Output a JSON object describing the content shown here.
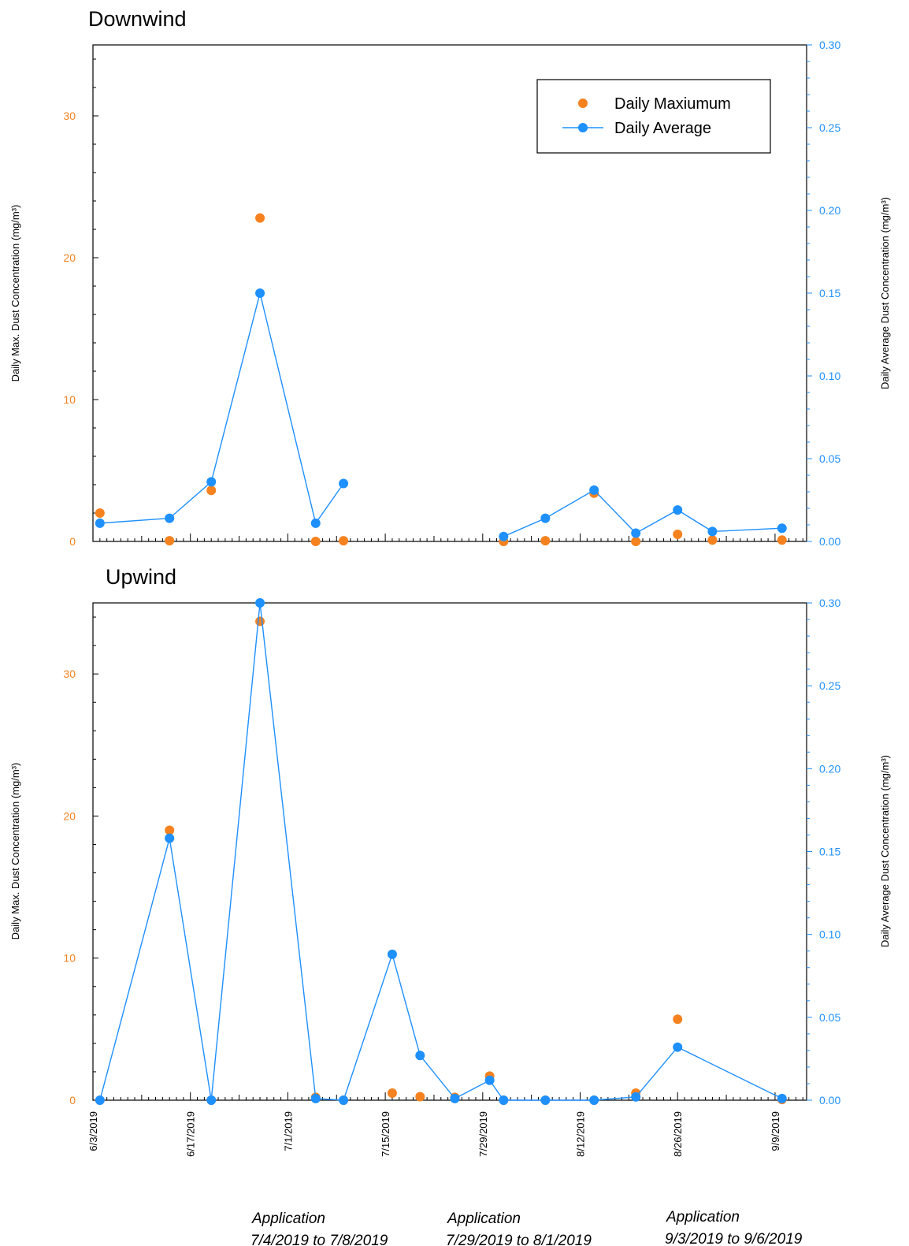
{
  "chart_data": [
    {
      "type": "scatter+line",
      "title": "Downwind",
      "ylabel_left": "Daily Max. Dust Concentration (mg/m³)",
      "ylabel_right": "Daily Average Dust Concentration (mg/m³)",
      "ylim_left": [
        0,
        35
      ],
      "ylim_right": [
        0,
        0.3
      ],
      "yticks_left": [
        0,
        10,
        20,
        30
      ],
      "yticks_right": [
        "0.00",
        "0.05",
        "0.10",
        "0.15",
        "0.20",
        "0.25",
        "0.30"
      ],
      "legend": {
        "position": "top-right",
        "entries": [
          "Daily Maxiumum",
          "Daily Average"
        ]
      },
      "series": [
        {
          "name": "Daily Maxiumum",
          "axis": "left",
          "style": "markers",
          "color": "#f5821f",
          "x": [
            "2019-06-04",
            "2019-06-14",
            "2019-06-20",
            "2019-06-27",
            "2019-07-05",
            "2019-07-09",
            "2019-08-01",
            "2019-08-07",
            "2019-08-14",
            "2019-08-20",
            "2019-08-26",
            "2019-08-31",
            "2019-09-10"
          ],
          "values": [
            2.0,
            0.05,
            3.6,
            22.8,
            0.0,
            0.05,
            0.0,
            0.05,
            3.4,
            0.0,
            0.5,
            0.1,
            0.1
          ]
        },
        {
          "name": "Daily Average",
          "axis": "right",
          "style": "line+markers",
          "color": "#1e90ff",
          "segments": [
            {
              "x": [
                "2019-06-04",
                "2019-06-14",
                "2019-06-20",
                "2019-06-27",
                "2019-07-05",
                "2019-07-09"
              ],
              "values": [
                0.011,
                0.014,
                0.036,
                0.15,
                0.011,
                0.035
              ]
            },
            {
              "x": [
                "2019-08-01",
                "2019-08-07",
                "2019-08-14",
                "2019-08-20",
                "2019-08-26",
                "2019-08-31",
                "2019-09-10"
              ],
              "values": [
                0.003,
                0.014,
                0.031,
                0.005,
                0.019,
                0.006,
                0.008
              ]
            }
          ]
        }
      ]
    },
    {
      "type": "scatter+line",
      "title": "Upwind",
      "ylabel_left": "Daily Max. Dust Concentration (mg/m³)",
      "ylabel_right": "Daily Average Dust Concentration (mg/m³)",
      "ylim_left": [
        0,
        35
      ],
      "ylim_right": [
        0,
        0.3
      ],
      "yticks_left": [
        0,
        10,
        20,
        30
      ],
      "yticks_right": [
        "0.00",
        "0.05",
        "0.10",
        "0.15",
        "0.20",
        "0.25",
        "0.30"
      ],
      "x_tick_labels": [
        "6/3/2019",
        "6/17/2019",
        "7/1/2019",
        "7/15/2019",
        "7/29/2019",
        "8/12/2019",
        "8/26/2019",
        "9/9/2019"
      ],
      "series": [
        {
          "name": "Daily Maxiumum",
          "axis": "left",
          "style": "markers",
          "color": "#f5821f",
          "x": [
            "2019-06-04",
            "2019-06-14",
            "2019-06-20",
            "2019-06-27",
            "2019-07-05",
            "2019-07-09",
            "2019-07-16",
            "2019-07-20",
            "2019-07-25",
            "2019-07-30",
            "2019-08-01",
            "2019-08-07",
            "2019-08-14",
            "2019-08-20",
            "2019-08-26",
            "2019-09-10"
          ],
          "values": [
            0.0,
            19.0,
            0.0,
            33.7,
            0.2,
            0.0,
            0.5,
            0.25,
            0.2,
            1.7,
            0.0,
            0.0,
            0.0,
            0.5,
            5.7,
            0.05
          ]
        },
        {
          "name": "Daily Average",
          "axis": "right",
          "style": "line+markers",
          "color": "#1e90ff",
          "segments": [
            {
              "x": [
                "2019-06-04",
                "2019-06-14",
                "2019-06-20",
                "2019-06-27",
                "2019-07-05",
                "2019-07-09",
                "2019-07-16",
                "2019-07-20",
                "2019-07-25",
                "2019-07-30",
                "2019-08-01",
                "2019-08-07",
                "2019-08-14",
                "2019-08-20",
                "2019-08-26",
                "2019-09-10"
              ],
              "values": [
                0.0,
                0.158,
                0.0,
                0.3,
                0.001,
                0.0,
                0.088,
                0.027,
                0.001,
                0.012,
                0.0,
                0.0,
                0.0,
                0.002,
                0.032,
                0.001
              ]
            }
          ]
        }
      ]
    }
  ],
  "annotations": [
    {
      "line1": "Application",
      "line2": "7/4/2019 to 7/8/2019"
    },
    {
      "line1": "Application",
      "line2": "7/29/2019 to 8/1/2019"
    },
    {
      "line1": "Application",
      "line2": "9/3/2019 to 9/6/2019"
    }
  ],
  "colors": {
    "max": "#f5821f",
    "avg": "#1e90ff",
    "axis": "#000000"
  }
}
